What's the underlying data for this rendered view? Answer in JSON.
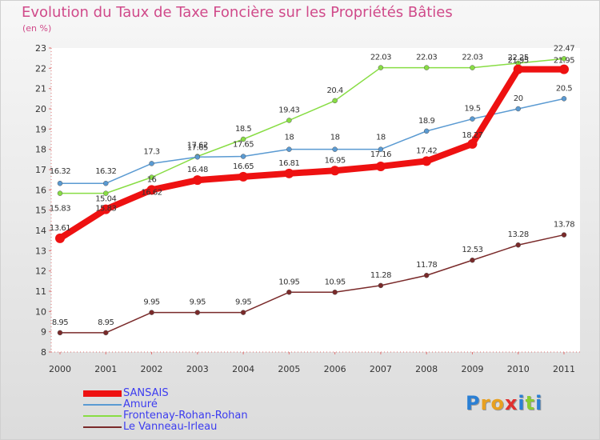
{
  "chart_data": {
    "type": "line",
    "title": "Evolution du Taux de Taxe Foncière sur les Propriétés Bâties",
    "ylabel": "(en %)",
    "xlabel": "",
    "x": [
      "2000",
      "2001",
      "2002",
      "2003",
      "2004",
      "2005",
      "2006",
      "2007",
      "2008",
      "2009",
      "2010",
      "2011"
    ],
    "ylim": [
      8,
      23
    ],
    "yticks": [
      "8",
      "9",
      "10",
      "11",
      "12",
      "13",
      "14",
      "15",
      "16",
      "17",
      "18",
      "19",
      "20",
      "21",
      "22",
      "23"
    ],
    "grid": false,
    "legend_position": "bottom-left",
    "series": [
      {
        "name": "SANSAIS",
        "color": "#ee1111",
        "values": [
          13.61,
          15.04,
          16,
          16.48,
          16.65,
          16.81,
          16.95,
          17.16,
          17.42,
          18.27,
          21.95,
          21.95
        ],
        "labels": [
          "13.61",
          "15.04",
          "16",
          "16.48",
          "16.65",
          "16.81",
          "16.95",
          "17.16",
          "17.42",
          "18.27",
          "21.95",
          "21.95"
        ]
      },
      {
        "name": "Amuré",
        "color": "#5a9ad2",
        "values": [
          16.32,
          16.32,
          17.3,
          17.62,
          17.65,
          18,
          18,
          18,
          18.9,
          19.5,
          20,
          20.5
        ],
        "labels": [
          "16.32",
          "16.32",
          "17.3",
          "17.62",
          "17.65",
          "18",
          "18",
          "18",
          "18.9",
          "19.5",
          "20",
          "20.5"
        ]
      },
      {
        "name": "Frontenay-Rohan-Rohan",
        "color": "#88dd44",
        "values": [
          15.83,
          15.83,
          16.62,
          17.65,
          18.5,
          19.43,
          20.4,
          22.03,
          22.03,
          22.03,
          22.25,
          22.47
        ],
        "labels": [
          "15.83",
          "15.83",
          "16.62",
          "17.65",
          "18.5",
          "19.43",
          "20.4",
          "22.03",
          "22.03",
          "22.03",
          "22.25",
          "22.47"
        ]
      },
      {
        "name": "Le Vanneau-Irleau",
        "color": "#7a2a2a",
        "values": [
          8.95,
          8.95,
          9.95,
          9.95,
          9.95,
          10.95,
          10.95,
          11.28,
          11.78,
          12.53,
          13.28,
          13.78
        ],
        "labels": [
          "8.95",
          "8.95",
          "9.95",
          "9.95",
          "9.95",
          "10.95",
          "10.95",
          "11.28",
          "11.78",
          "12.53",
          "13.28",
          "13.78"
        ]
      }
    ]
  },
  "logo": {
    "letters": [
      "P",
      "r",
      "o",
      "x",
      "i",
      "t",
      "i"
    ]
  }
}
